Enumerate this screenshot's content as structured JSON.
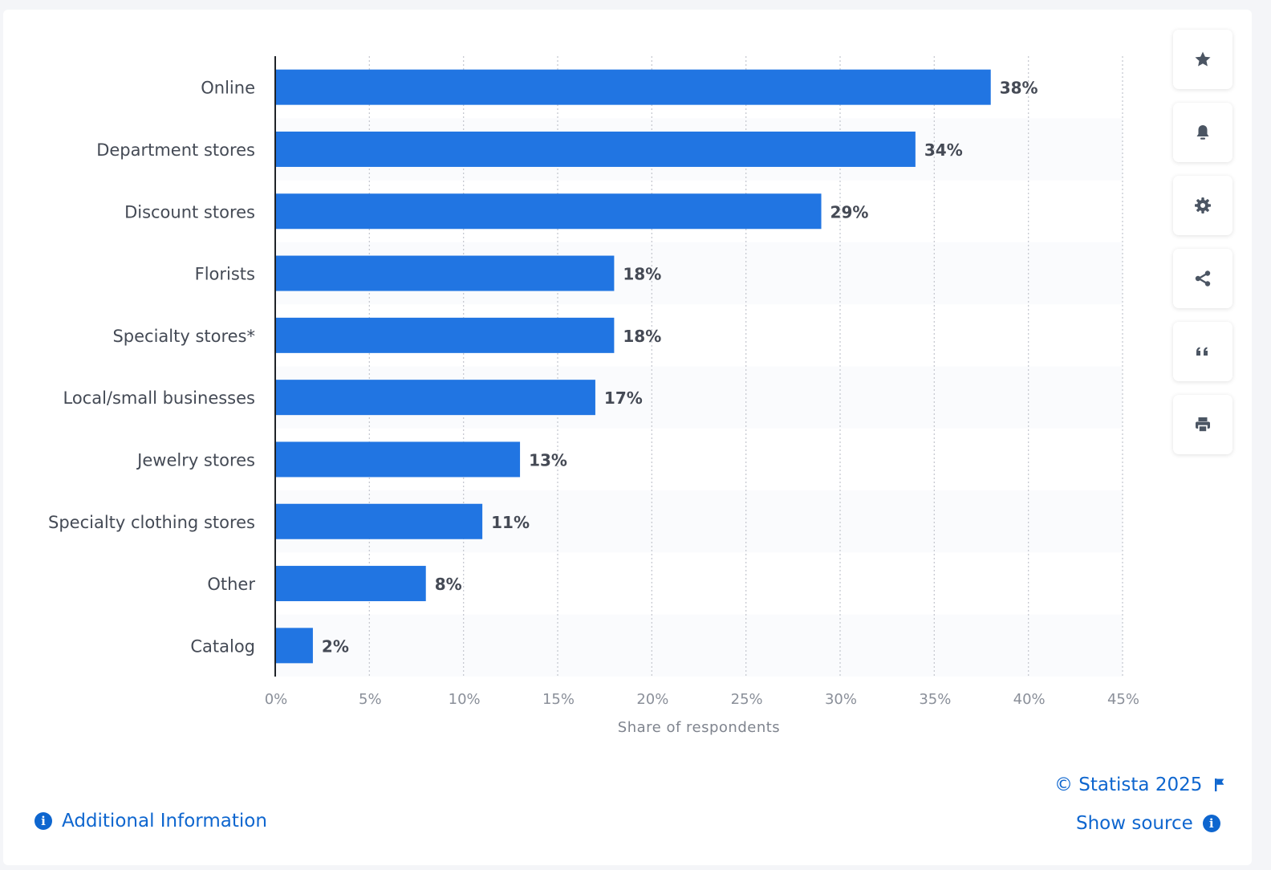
{
  "chart_data": {
    "type": "bar",
    "orientation": "horizontal",
    "categories": [
      "Online",
      "Department stores",
      "Discount stores",
      "Florists",
      "Specialty stores*",
      "Local/small businesses",
      "Jewelry stores",
      "Specialty clothing stores",
      "Other",
      "Catalog"
    ],
    "values": [
      38,
      34,
      29,
      18,
      18,
      17,
      13,
      11,
      8,
      2
    ],
    "value_labels": [
      "38%",
      "34%",
      "29%",
      "18%",
      "18%",
      "17%",
      "13%",
      "11%",
      "8%",
      "2%"
    ],
    "xlabel": "Share of respondents",
    "ylabel": "",
    "xlim": [
      0,
      45
    ],
    "ticks": [
      0,
      5,
      10,
      15,
      20,
      25,
      30,
      35,
      40,
      45
    ],
    "tick_labels": [
      "0%",
      "5%",
      "10%",
      "15%",
      "20%",
      "25%",
      "30%",
      "35%",
      "40%",
      "45%"
    ],
    "grid": true,
    "bar_color": "#2175e2"
  },
  "toolbar": [
    {
      "name": "favorite-button",
      "icon": "star-icon"
    },
    {
      "name": "notification-button",
      "icon": "bell-icon"
    },
    {
      "name": "settings-button",
      "icon": "gear-icon"
    },
    {
      "name": "share-button",
      "icon": "share-icon"
    },
    {
      "name": "cite-button",
      "icon": "quote-icon"
    },
    {
      "name": "print-button",
      "icon": "print-icon"
    }
  ],
  "footer": {
    "copyright": "© Statista 2025",
    "show_source": "Show source",
    "additional_info": "Additional Information"
  },
  "colors": {
    "accent": "#0e66cf",
    "icon": "#4b5563"
  }
}
